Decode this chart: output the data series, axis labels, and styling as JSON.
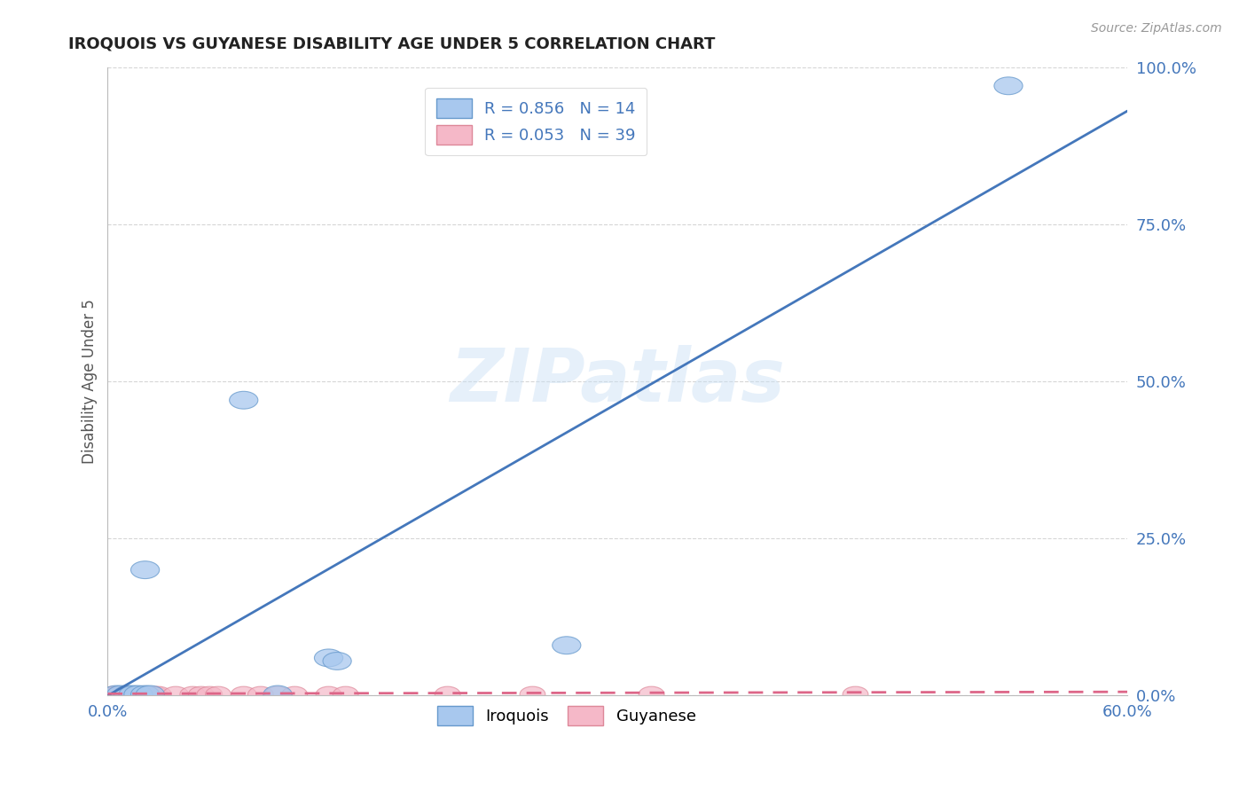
{
  "title": "IROQUOIS VS GUYANESE DISABILITY AGE UNDER 5 CORRELATION CHART",
  "source_text": "Source: ZipAtlas.com",
  "ylabel": "Disability Age Under 5",
  "xlim": [
    0.0,
    0.6
  ],
  "ylim": [
    0.0,
    1.0
  ],
  "xtick_positions": [
    0.0,
    0.1,
    0.2,
    0.3,
    0.4,
    0.5,
    0.6
  ],
  "xticklabels": [
    "0.0%",
    "",
    "",
    "",
    "",
    "",
    "60.0%"
  ],
  "ytick_positions": [
    0.0,
    0.25,
    0.5,
    0.75,
    1.0
  ],
  "yticklabels": [
    "0.0%",
    "25.0%",
    "50.0%",
    "75.0%",
    "100.0%"
  ],
  "iroquois_color": "#A8C8EE",
  "iroquois_edge": "#6699CC",
  "guyanese_color": "#F5B8C8",
  "guyanese_edge": "#DD8899",
  "iroquois_R": 0.856,
  "iroquois_N": 14,
  "guyanese_R": 0.053,
  "guyanese_N": 39,
  "iroquois_line_color": "#4477BB",
  "guyanese_line_color": "#DD6688",
  "watermark": "ZIPatlas",
  "iroquois_points_x": [
    0.005,
    0.008,
    0.012,
    0.015,
    0.018,
    0.022,
    0.022,
    0.025,
    0.08,
    0.1,
    0.13,
    0.135,
    0.27,
    0.53
  ],
  "iroquois_points_y": [
    0.002,
    0.002,
    0.002,
    0.002,
    0.002,
    0.002,
    0.2,
    0.002,
    0.47,
    0.002,
    0.06,
    0.055,
    0.08,
    0.97
  ],
  "guyanese_points_x": [
    0.003,
    0.004,
    0.005,
    0.006,
    0.007,
    0.008,
    0.009,
    0.01,
    0.011,
    0.012,
    0.013,
    0.014,
    0.015,
    0.016,
    0.017,
    0.018,
    0.019,
    0.02,
    0.021,
    0.022,
    0.023,
    0.025,
    0.028,
    0.03,
    0.04,
    0.05,
    0.055,
    0.06,
    0.065,
    0.08,
    0.09,
    0.1,
    0.11,
    0.13,
    0.14,
    0.2,
    0.25,
    0.32,
    0.44
  ],
  "guyanese_points_y": [
    0.002,
    0.002,
    0.002,
    0.002,
    0.002,
    0.002,
    0.002,
    0.002,
    0.002,
    0.002,
    0.002,
    0.002,
    0.002,
    0.002,
    0.002,
    0.002,
    0.002,
    0.002,
    0.002,
    0.002,
    0.002,
    0.002,
    0.002,
    0.002,
    0.002,
    0.002,
    0.002,
    0.002,
    0.002,
    0.002,
    0.002,
    0.002,
    0.002,
    0.002,
    0.002,
    0.002,
    0.002,
    0.002,
    0.002
  ],
  "iroquois_line_x": [
    0.0,
    0.6
  ],
  "iroquois_line_y": [
    0.0,
    0.93
  ],
  "guyanese_line_x": [
    0.0,
    0.6
  ],
  "guyanese_line_y": [
    0.003,
    0.006
  ],
  "background_color": "#FFFFFF",
  "grid_color": "#CCCCCC",
  "title_color": "#222222",
  "tick_color": "#4477BB",
  "legend_label_color": "#4477BB"
}
